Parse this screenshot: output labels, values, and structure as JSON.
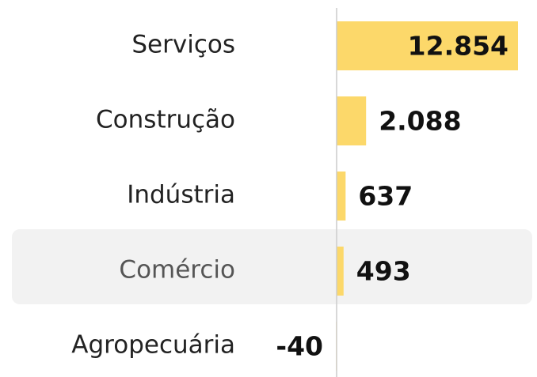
{
  "chart_data": {
    "type": "hbar",
    "categories": [
      "Serviços",
      "Construção",
      "Indústria",
      "Comércio",
      "Agropecuária"
    ],
    "values": [
      12854,
      2088,
      637,
      493,
      -40
    ],
    "value_labels": [
      "12.854",
      "2.088",
      "637",
      "493",
      "-40"
    ],
    "color": "#fcd86a",
    "xlim": [
      0,
      12854
    ]
  }
}
